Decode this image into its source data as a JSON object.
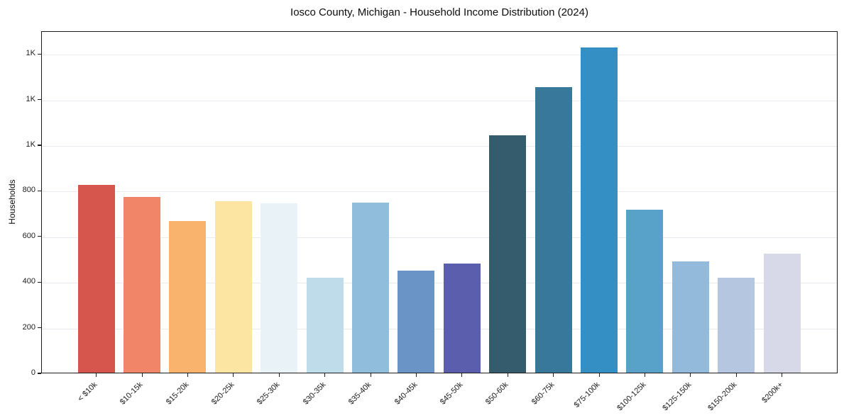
{
  "chart_data": {
    "type": "bar",
    "title": "Iosco County, Michigan - Household Income Distribution (2024)",
    "xlabel": "",
    "ylabel": "Households",
    "categories": [
      "< $10k",
      "$10-15k",
      "$15-20k",
      "$20-25k",
      "$25-30k",
      "$30-35k",
      "$35-40k",
      "$40-45k",
      "$45-50k",
      "$50-60k",
      "$60-75k",
      "$75-100k",
      "$100-125k",
      "$125-150k",
      "$150-200k",
      "$200k+"
    ],
    "values": [
      822,
      771,
      664,
      752,
      741,
      415,
      744,
      448,
      479,
      1039,
      1252,
      1426,
      714,
      488,
      415,
      522
    ],
    "bar_colors": [
      "#d6564e",
      "#f18567",
      "#fab36c",
      "#fce5a2",
      "#e9f2f6",
      "#bedcea",
      "#90bddc",
      "#6b94c6",
      "#5b5ead",
      "#355c6d",
      "#38789a",
      "#348fc4",
      "#58a1c8",
      "#93badb",
      "#b5c6e0",
      "#d7d9e8"
    ],
    "ylim": [
      0,
      1500
    ],
    "yticks": [
      {
        "value": 0,
        "label": "0"
      },
      {
        "value": 200,
        "label": "200"
      },
      {
        "value": 400,
        "label": "400"
      },
      {
        "value": 600,
        "label": "600"
      },
      {
        "value": 800,
        "label": "800"
      },
      {
        "value": 1000,
        "label": "1K"
      },
      {
        "value": 1200,
        "label": "1K"
      },
      {
        "value": 1400,
        "label": "1K"
      }
    ],
    "grid": "horizontal",
    "gridline_color": "#e9e9f0",
    "legend": "none",
    "bar_width_fraction": 0.8
  }
}
